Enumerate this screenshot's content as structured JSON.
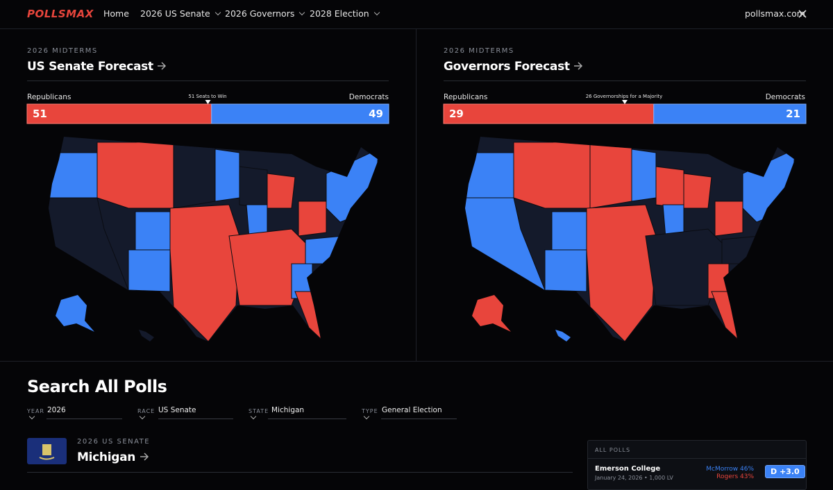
{
  "nav": {
    "logo": "POLLSMAX",
    "links": [
      "Home",
      "2026 US Senate",
      "2026 Governors",
      "2028 Election"
    ],
    "site": "pollsmax.com"
  },
  "senate": {
    "eyebrow": "2026 MIDTERMS",
    "title": "US Senate Forecast",
    "left_label": "Republicans",
    "right_label": "Democrats",
    "threshold_label": "51 Seats to Win",
    "rep": 51,
    "dem": 49
  },
  "governors": {
    "eyebrow": "2026 MIDTERMS",
    "title": "Governors Forecast",
    "left_label": "Republicans",
    "right_label": "Democrats",
    "threshold_label": "26 Governorships for a Majority",
    "rep": 29,
    "dem": 21
  },
  "search": {
    "title": "Search All Polls",
    "filters": [
      {
        "label": "YEAR",
        "value": "2026"
      },
      {
        "label": "RACE",
        "value": "US Senate"
      },
      {
        "label": "STATE",
        "value": "Michigan"
      },
      {
        "label": "TYPE",
        "value": "General Election"
      }
    ]
  },
  "race": {
    "eyebrow": "2026 US SENATE",
    "title": "Michigan"
  },
  "polls": {
    "header": "ALL POLLS",
    "items": [
      {
        "pollster": "Emerson College",
        "meta": "January 24, 2026 • 1,000 LV",
        "dem": "McMorrow 46%",
        "rep": "Rogers 43%",
        "margin": "D +3.0"
      }
    ]
  }
}
